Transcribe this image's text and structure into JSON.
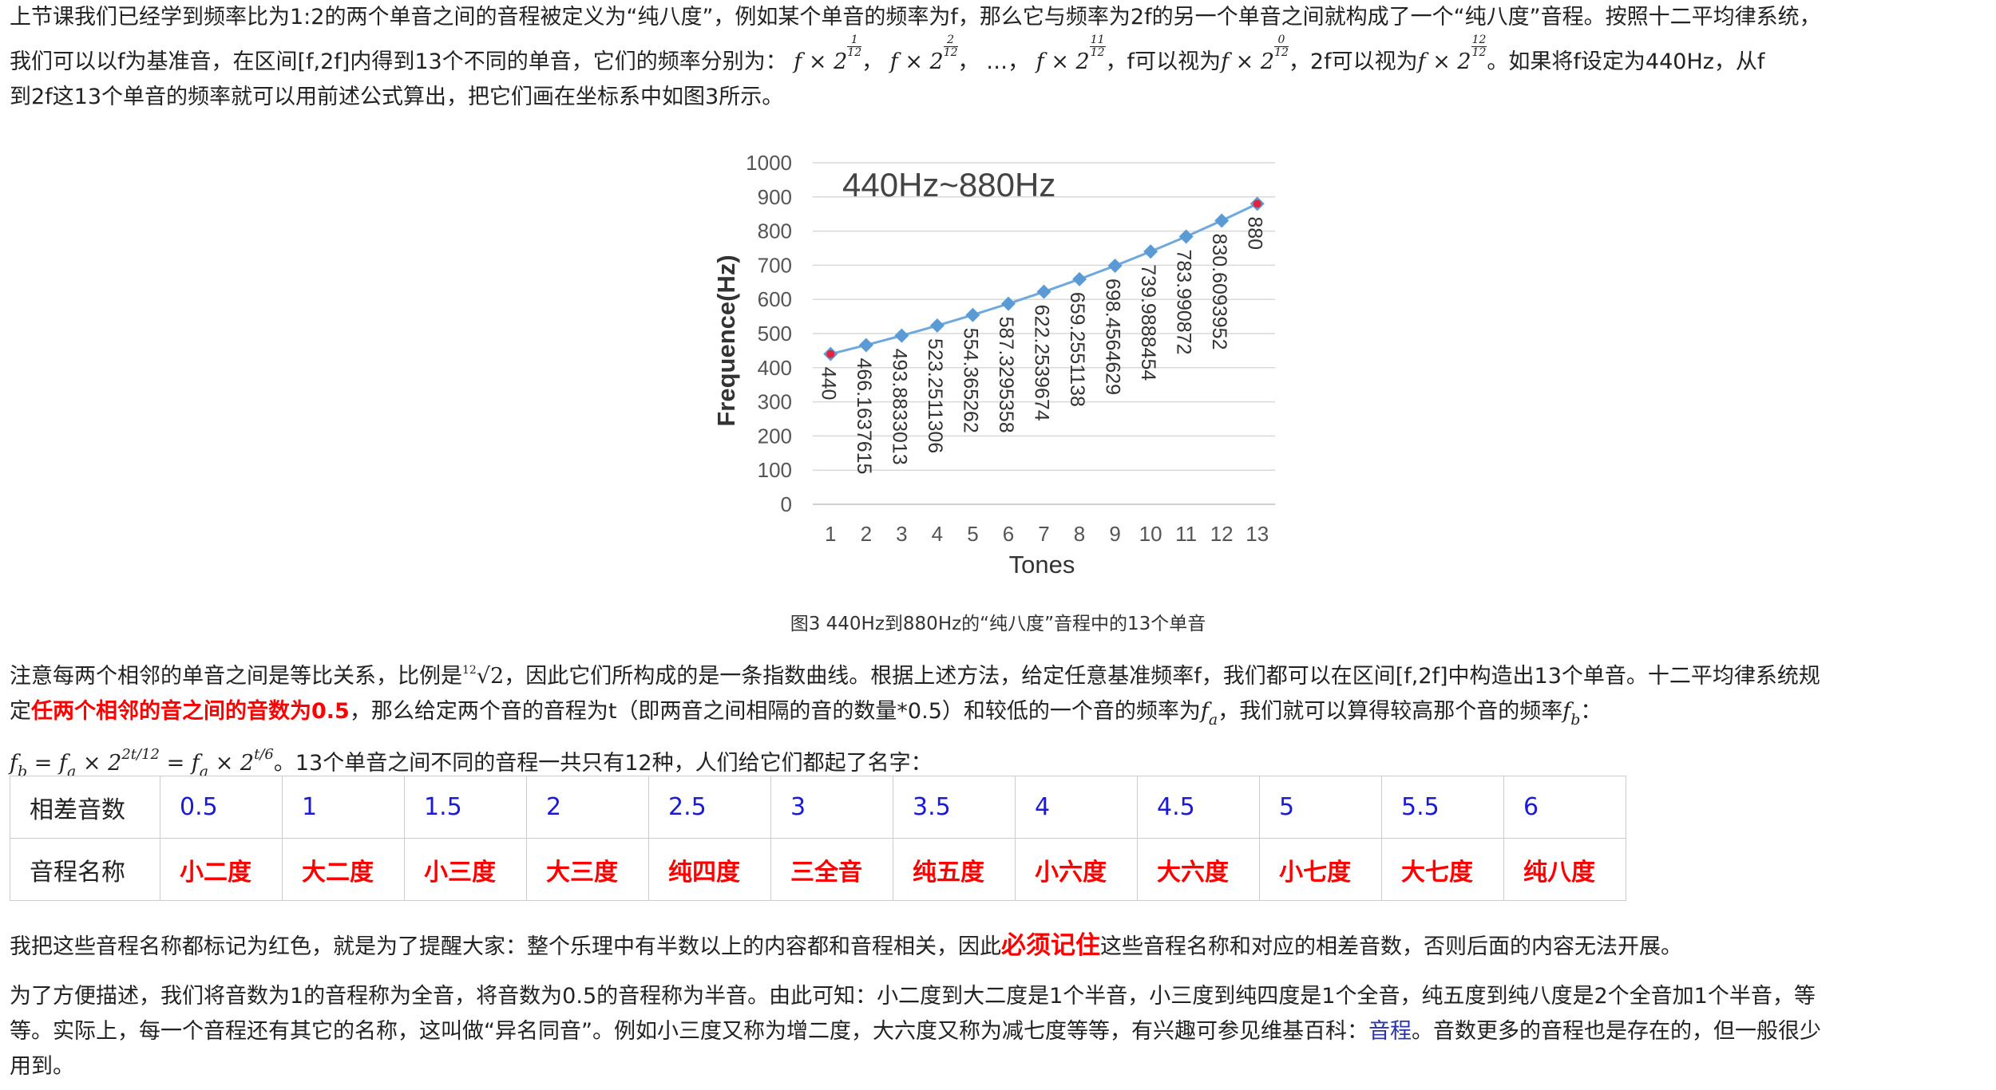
{
  "intro": {
    "l1": "上节课我们已经学到频率比为1:2的两个单音之间的音程被定义为“纯八度”，例如某个单音的频率为f，那么它与频率为2f的另一个单音之间就构成了一个“纯八度”音程。按照十二平均律系统，",
    "l2_a": "我们可以以f为基准音，在区间[f,2f]内得到13个不同的单音，它们的频率分别为：",
    "l2_sep": "，",
    "l2_dots": "…，",
    "l2_b": "，f可以视为",
    "l2_c": "，2f可以视为",
    "l2_d": "。如果将f设定为440Hz，从f",
    "l3": "到2f这13个单音的频率就可以用前述公式算出，把它们画在坐标系中如图3所示。",
    "m_f": "f",
    "m_times": "×",
    "m_two": "2",
    "m_num1": "1",
    "m_num2": "2",
    "m_num11": "11",
    "m_num0": "0",
    "m_num12": "12",
    "m_den": "12"
  },
  "chart_data": {
    "type": "line",
    "title": "440Hz~880Hz",
    "xlabel": "Tones",
    "ylabel": "Frequence(Hz)",
    "ylim": [
      0,
      1000
    ],
    "y_ticks": [
      "0",
      "100",
      "200",
      "300",
      "400",
      "500",
      "600",
      "700",
      "800",
      "900",
      "1000"
    ],
    "categories": [
      "1",
      "2",
      "3",
      "4",
      "5",
      "6",
      "7",
      "8",
      "9",
      "10",
      "11",
      "12",
      "13"
    ],
    "values": [
      440,
      466.1637615,
      493.8833013,
      523.2511306,
      554.365262,
      587.3295358,
      622.2539674,
      659.2551138,
      698.4564629,
      739.9888454,
      783.990872,
      830.6093952,
      880
    ],
    "labels": [
      "440",
      "466.1637615",
      "493.8833013",
      "523.2511306",
      "554.365262",
      "587.3295358",
      "622.2539674",
      "659.2551138",
      "698.4564629",
      "739.9888454",
      "783.990872",
      "830.6093952",
      "880"
    ],
    "grid": true,
    "line_color": "#6fa8dc",
    "marker_color": "#5b9bd5",
    "highlight_color": "#e8203a"
  },
  "caption": "图3 440Hz到880Hz的“纯八度”音程中的13个单音",
  "note": {
    "l1_a": "注意每两个相邻的单音之间是等比关系，比例是",
    "root_index": "12",
    "root_body": "√2",
    "l1_b": "，因此它们所构成的是一条指数曲线。根据上述方法，给定任意基准频率f，我们都可以在区间[f,2f]中构造出13个单音。十二平均律系统规",
    "l2_a": "定",
    "l2_red": "任两个相邻的音之间的音数为0.5",
    "l2_b": "，那么给定两个音的音程为t（即两音之间相隔的音的数量*0.5）和较低的一个音的频率为",
    "l2_c": "，我们就可以算得较高那个音的频率",
    "l2_d": "：",
    "fa": "f",
    "fa_sub": "a",
    "fb_sub": "b",
    "eq": "=",
    "exp1": "2t/12",
    "exp2": "t/6",
    "l3_b": "。13个单音之间不同的音程一共只有12种，人们给它们都起了名字："
  },
  "table": {
    "head_diff": "相差音数",
    "head_name": "音程名称",
    "diffs": [
      "0.5",
      "1",
      "1.5",
      "2",
      "2.5",
      "3",
      "3.5",
      "4",
      "4.5",
      "5",
      "5.5",
      "6"
    ],
    "names": [
      "小二度",
      "大二度",
      "小三度",
      "大三度",
      "纯四度",
      "三全音",
      "纯五度",
      "小六度",
      "大六度",
      "小七度",
      "大七度",
      "纯八度"
    ]
  },
  "remember": {
    "a": "我把这些音程名称都标记为红色，就是为了提醒大家：整个乐理中有半数以上的内容都和音程相关，因此",
    "red": "必须记住",
    "b": "这些音程名称和对应的相差音数，否则后面的内容无法开展。"
  },
  "last": {
    "l1": "为了方便描述，我们将音数为1的音程称为全音，将音数为0.5的音程称为半音。由此可知：小二度到大二度是1个半音，小三度到纯四度是1个全音，纯五度到纯八度是2个全音加1个半音，等",
    "l2_a": "等。实际上，每一个音程还有其它的名称，这叫做“异名同音”。例如小三度又称为增二度，大六度又称为减七度等等，有兴趣可参见维基百科：",
    "link": "音程",
    "l2_b": "。音数更多的音程也是存在的，但一般很少",
    "l3": "用到。"
  }
}
